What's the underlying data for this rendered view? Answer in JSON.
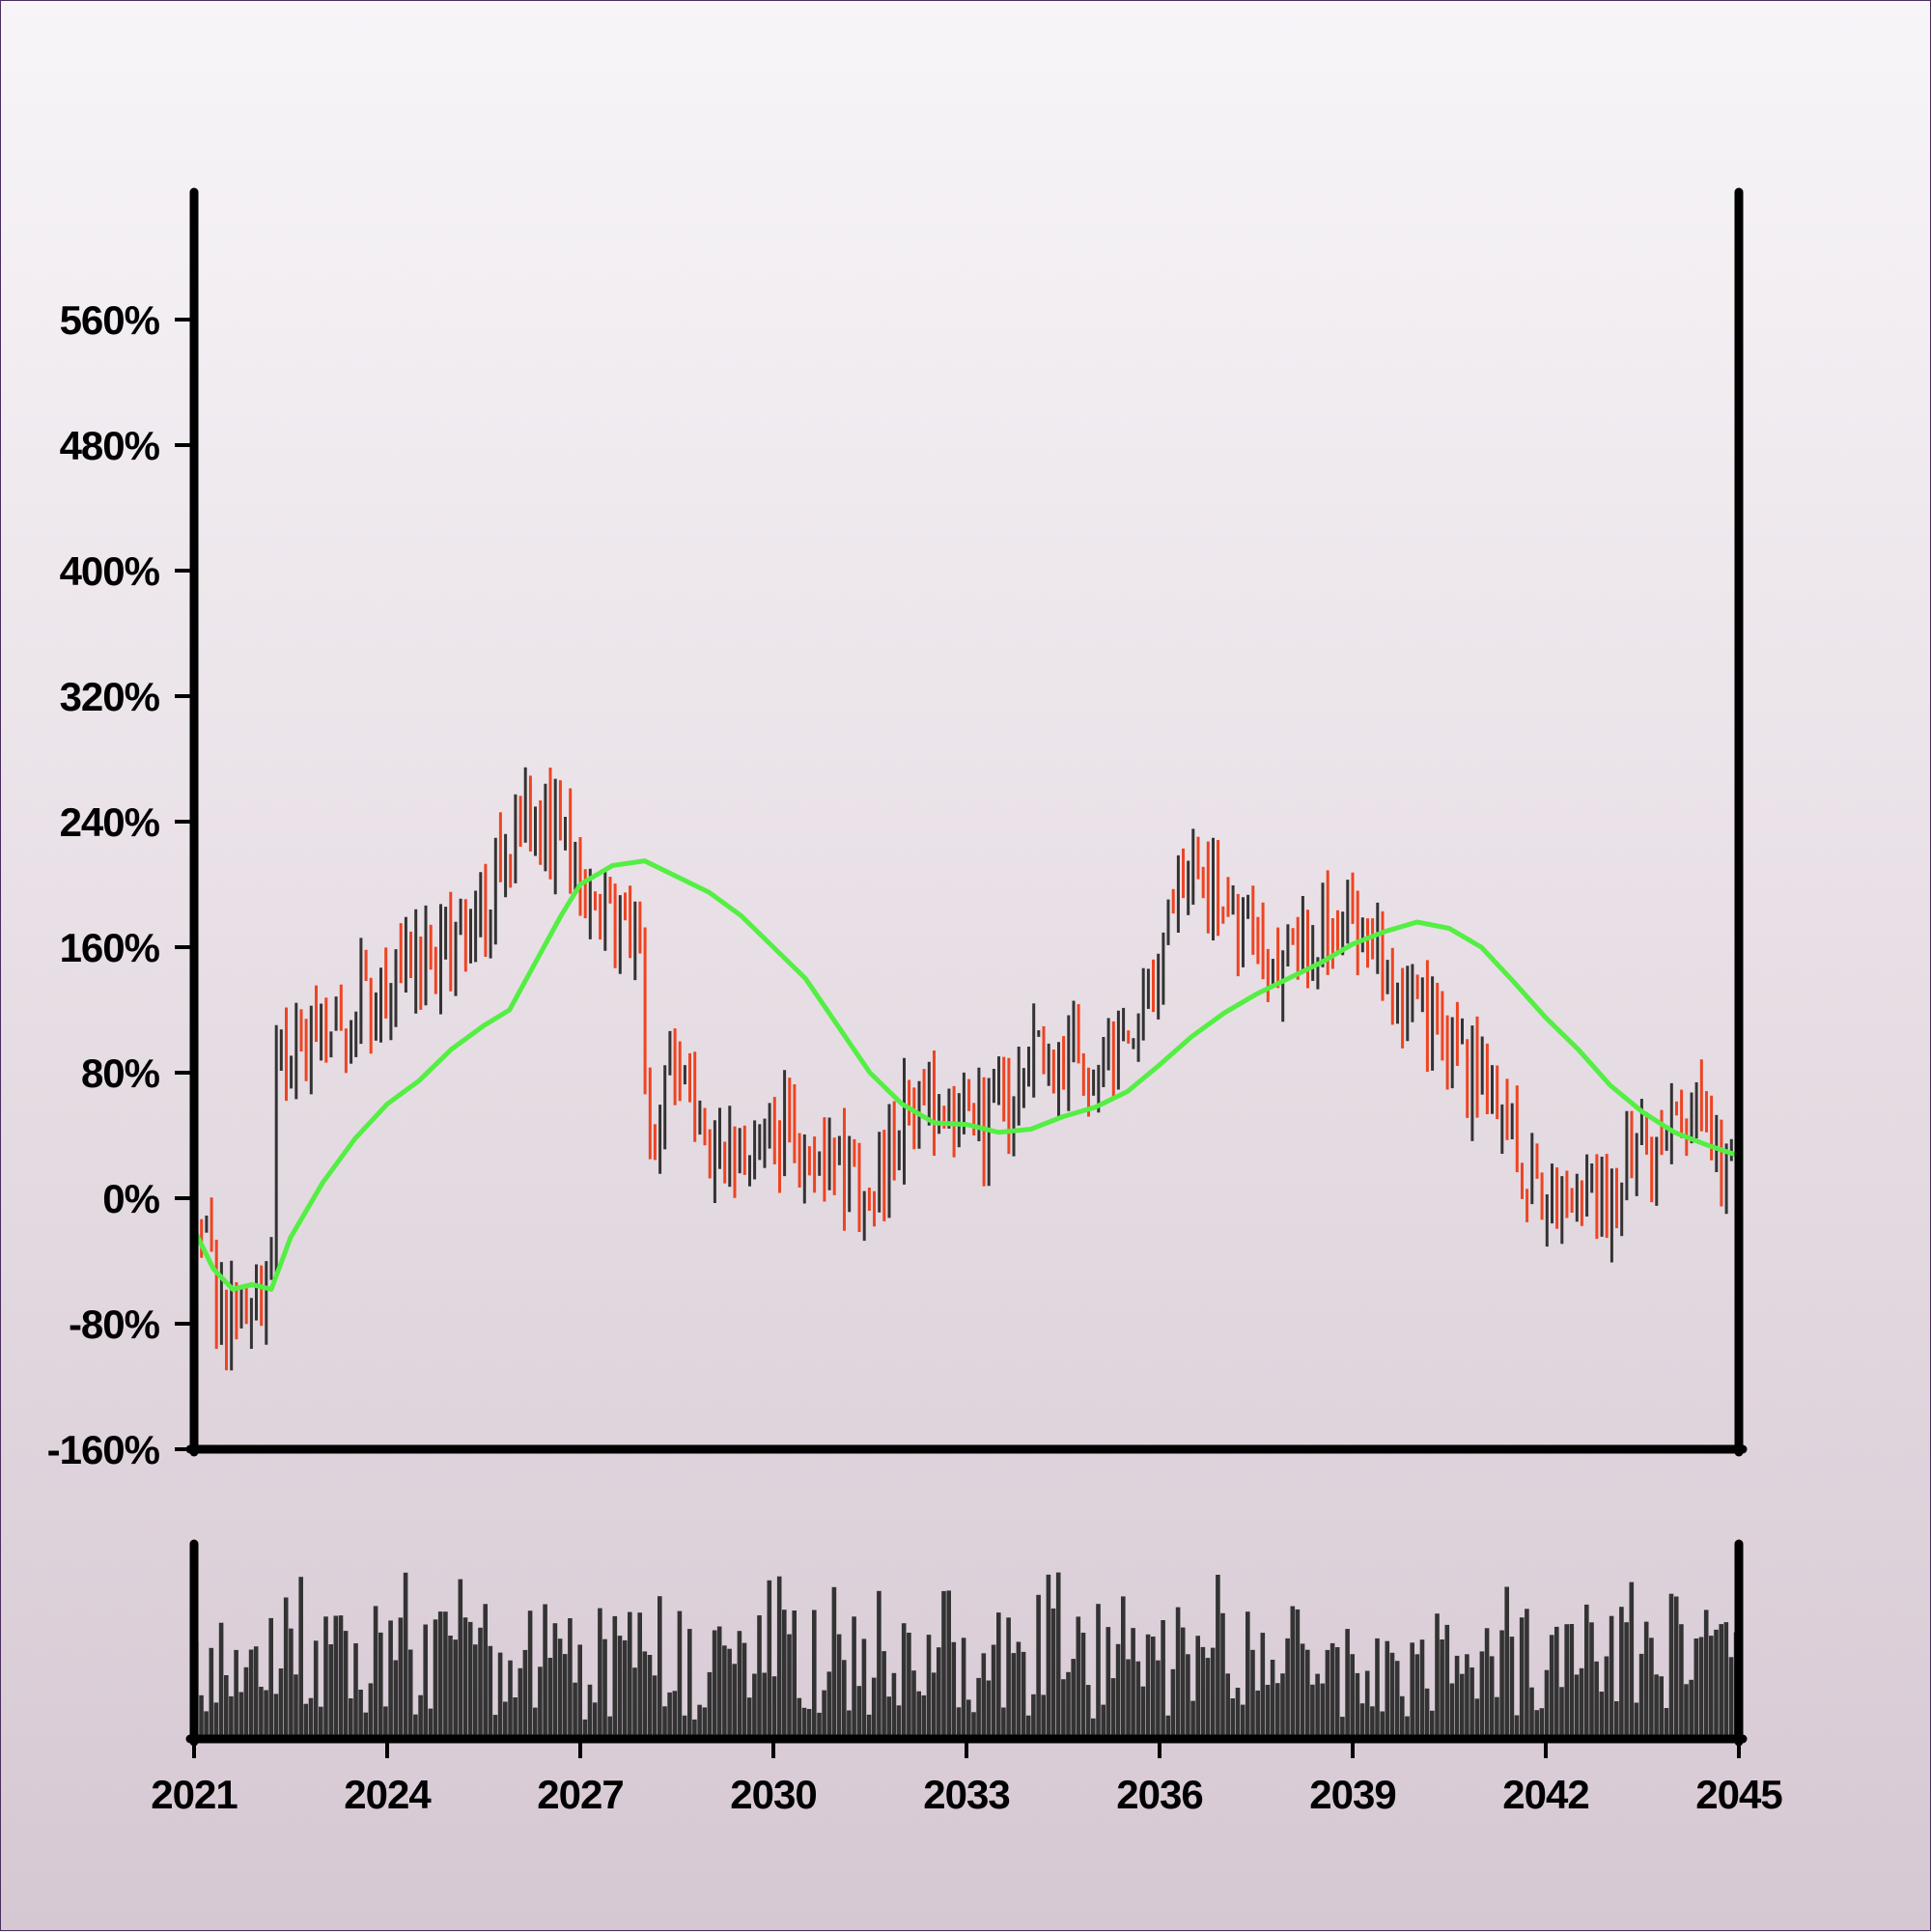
{
  "chart_data": {
    "type": "ohlc",
    "title": "",
    "xlabel": "",
    "ylabel": "",
    "x_range": [
      2021,
      2045
    ],
    "ylim": [
      -160,
      640
    ],
    "y_ticks": [
      -160,
      -80,
      0,
      80,
      160,
      240,
      320,
      400,
      480,
      560
    ],
    "y_tick_labels": [
      "-160%",
      "-80%",
      "0%",
      "80%",
      "160%",
      "240%",
      "320%",
      "400%",
      "480%",
      "560%"
    ],
    "x_ticks": [
      2021,
      2024,
      2027,
      2030,
      2033,
      2036,
      2039,
      2042,
      2045
    ],
    "x_tick_labels": [
      "2021",
      "2024",
      "2027",
      "2030",
      "2033",
      "2036",
      "2039",
      "2042",
      "2045"
    ],
    "close_anchors": [
      [
        2021.0,
        -20
      ],
      [
        2021.4,
        -70
      ],
      [
        2021.9,
        -80
      ],
      [
        2022.2,
        -55
      ],
      [
        2022.25,
        95
      ],
      [
        2022.7,
        90
      ],
      [
        2023.2,
        110
      ],
      [
        2023.8,
        135
      ],
      [
        2024.4,
        140
      ],
      [
        2024.9,
        170
      ],
      [
        2025.6,
        195
      ],
      [
        2026.0,
        235
      ],
      [
        2026.4,
        240
      ],
      [
        2026.9,
        210
      ],
      [
        2027.4,
        180
      ],
      [
        2027.95,
        175
      ],
      [
        2028.05,
        40
      ],
      [
        2028.5,
        90
      ],
      [
        2029.0,
        40
      ],
      [
        2029.5,
        30
      ],
      [
        2030.2,
        40
      ],
      [
        2030.8,
        25
      ],
      [
        2031.5,
        5
      ],
      [
        2032.0,
        55
      ],
      [
        2032.6,
        60
      ],
      [
        2033.2,
        45
      ],
      [
        2033.8,
        70
      ],
      [
        2034.4,
        100
      ],
      [
        2035.0,
        85
      ],
      [
        2035.6,
        120
      ],
      [
        2036.2,
        180
      ],
      [
        2036.8,
        205
      ],
      [
        2037.4,
        160
      ],
      [
        2037.9,
        140
      ],
      [
        2038.5,
        170
      ],
      [
        2039.0,
        185
      ],
      [
        2039.6,
        140
      ],
      [
        2040.2,
        115
      ],
      [
        2040.6,
        85
      ],
      [
        2041.2,
        60
      ],
      [
        2041.7,
        10
      ],
      [
        2042.3,
        -5
      ],
      [
        2042.9,
        -10
      ],
      [
        2043.4,
        30
      ],
      [
        2043.9,
        45
      ],
      [
        2044.5,
        40
      ],
      [
        2045.0,
        10
      ]
    ],
    "moving_average": [
      [
        2021.0,
        -20
      ],
      [
        2021.3,
        -45
      ],
      [
        2021.6,
        -58
      ],
      [
        2021.9,
        -55
      ],
      [
        2022.2,
        -58
      ],
      [
        2022.5,
        -25
      ],
      [
        2023.0,
        10
      ],
      [
        2023.5,
        38
      ],
      [
        2024.0,
        60
      ],
      [
        2024.5,
        75
      ],
      [
        2025.0,
        95
      ],
      [
        2025.5,
        110
      ],
      [
        2025.9,
        120
      ],
      [
        2026.3,
        150
      ],
      [
        2026.7,
        180
      ],
      [
        2027.0,
        200
      ],
      [
        2027.5,
        212
      ],
      [
        2028.0,
        215
      ],
      [
        2028.5,
        205
      ],
      [
        2029.0,
        195
      ],
      [
        2029.5,
        180
      ],
      [
        2030.0,
        160
      ],
      [
        2030.5,
        140
      ],
      [
        2031.0,
        110
      ],
      [
        2031.5,
        80
      ],
      [
        2032.0,
        60
      ],
      [
        2032.5,
        48
      ],
      [
        2033.0,
        47
      ],
      [
        2033.5,
        42
      ],
      [
        2034.0,
        44
      ],
      [
        2034.5,
        52
      ],
      [
        2035.0,
        58
      ],
      [
        2035.5,
        68
      ],
      [
        2036.0,
        85
      ],
      [
        2036.5,
        103
      ],
      [
        2037.0,
        118
      ],
      [
        2037.5,
        130
      ],
      [
        2038.0,
        140
      ],
      [
        2038.5,
        150
      ],
      [
        2039.0,
        162
      ],
      [
        2039.5,
        170
      ],
      [
        2040.0,
        176
      ],
      [
        2040.5,
        172
      ],
      [
        2041.0,
        160
      ],
      [
        2041.5,
        138
      ],
      [
        2042.0,
        115
      ],
      [
        2042.5,
        95
      ],
      [
        2043.0,
        72
      ],
      [
        2043.5,
        55
      ],
      [
        2044.0,
        42
      ],
      [
        2044.5,
        34
      ],
      [
        2045.0,
        27
      ]
    ],
    "up_color": "#333333",
    "down_color": "#ee4422",
    "ma_color": "#55ee44",
    "volume_color": "#333333",
    "grid": false,
    "legend": "none"
  }
}
